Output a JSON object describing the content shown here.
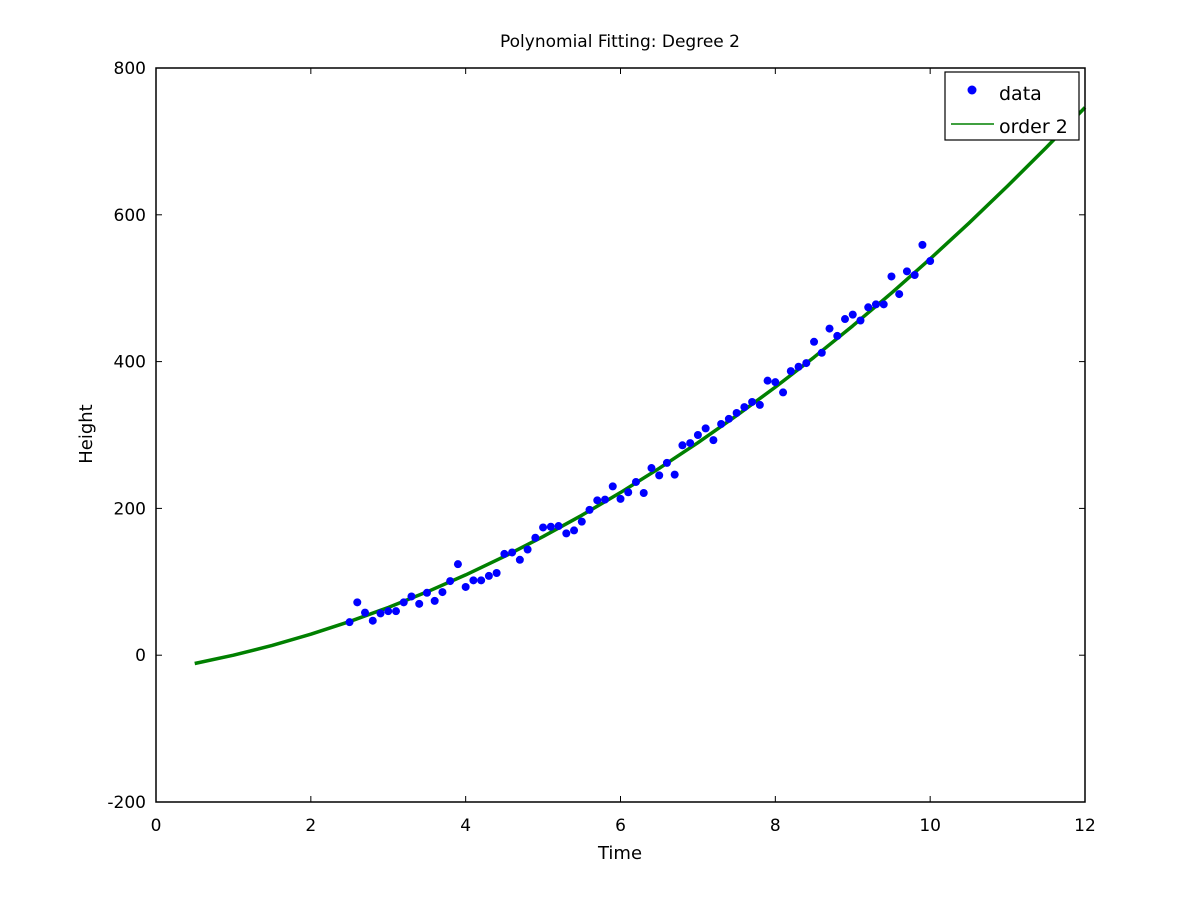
{
  "chart_data": {
    "type": "scatter",
    "title": "Polynomial Fitting: Degree 2",
    "xlabel": "Time",
    "ylabel": "Height",
    "xlim": [
      0,
      12
    ],
    "ylim": [
      -200,
      800
    ],
    "xticks": [
      "0",
      "2",
      "4",
      "6",
      "8",
      "10",
      "12"
    ],
    "yticks": [
      "-200",
      "0",
      "200",
      "400",
      "600",
      "800"
    ],
    "grid": false,
    "legend_position": "top-right",
    "series": [
      {
        "name": "data",
        "kind": "scatter",
        "color": "#0000ff",
        "x": [
          2.5,
          2.6,
          2.7,
          2.8,
          2.9,
          3.0,
          3.1,
          3.2,
          3.3,
          3.4,
          3.5,
          3.6,
          3.7,
          3.8,
          3.9,
          4.0,
          4.1,
          4.2,
          4.3,
          4.4,
          4.5,
          4.6,
          4.7,
          4.8,
          4.9,
          5.0,
          5.1,
          5.2,
          5.3,
          5.4,
          5.5,
          5.6,
          5.7,
          5.8,
          5.9,
          6.0,
          6.1,
          6.2,
          6.3,
          6.4,
          6.5,
          6.6,
          6.7,
          6.8,
          6.9,
          7.0,
          7.1,
          7.2,
          7.3,
          7.4,
          7.5,
          7.6,
          7.7,
          7.8,
          7.9,
          8.0,
          8.1,
          8.2,
          8.3,
          8.4,
          8.5,
          8.6,
          8.7,
          8.8,
          8.9,
          9.0,
          9.1,
          9.2,
          9.3,
          9.4,
          9.5,
          9.6,
          9.7,
          9.8,
          9.9,
          10.0
        ],
        "y": [
          45,
          72,
          58,
          47,
          57,
          60,
          60,
          72,
          80,
          70,
          85,
          74,
          86,
          101,
          124,
          93,
          102,
          102,
          108,
          112,
          138,
          140,
          130,
          144,
          160,
          174,
          175,
          176,
          166,
          170,
          182,
          198,
          211,
          212,
          230,
          213,
          222,
          236,
          221,
          255,
          245,
          262,
          246,
          286,
          289,
          300,
          309,
          293,
          315,
          322,
          330,
          338,
          345,
          341,
          374,
          372,
          358,
          387,
          393,
          398,
          427,
          412,
          445,
          435,
          458,
          464,
          456,
          474,
          478,
          478,
          516,
          492,
          523,
          518,
          559,
          537
        ]
      },
      {
        "name": "order 2",
        "kind": "line",
        "color": "#008000",
        "x": [
          0.5,
          1,
          1.5,
          2,
          2.5,
          3,
          3.5,
          4,
          4.5,
          5,
          5.5,
          6,
          6.5,
          7,
          7.5,
          8,
          8.5,
          9,
          9.5,
          10,
          10.5,
          11,
          11.5,
          12
        ],
        "y": [
          -11.3,
          0,
          13.3,
          28.6,
          45.8,
          65.0,
          86.2,
          109.4,
          134.5,
          161.6,
          190.6,
          221.6,
          254.6,
          289.5,
          326.4,
          365.2,
          406.0,
          448.7,
          493.4,
          540.0,
          588.6,
          639.2,
          691.7,
          746.2
        ]
      }
    ]
  }
}
